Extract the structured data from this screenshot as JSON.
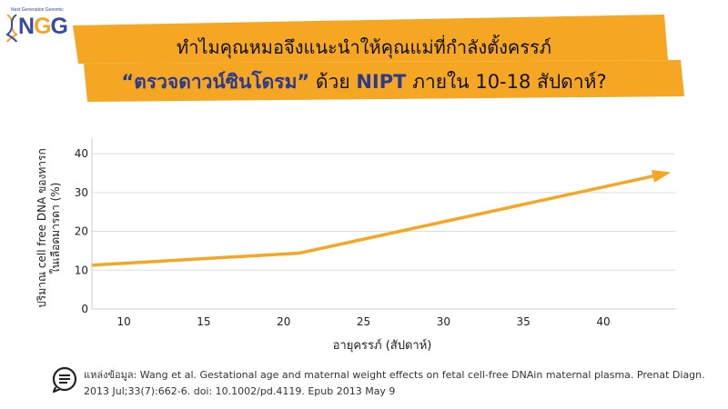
{
  "logo": {
    "tagline": "Next Generation Genomic",
    "letters": [
      "N",
      "G",
      "G"
    ]
  },
  "banner": {
    "line1": "ทำไมคุณหมอจึงแนะนำให้คุณแม่ที่กำลังตั้งครรภ์",
    "line2_highlight": "“ตรวจดาวน์ซินโดรม”",
    "line2_mid": " ด้วย ",
    "line2_nipt": "NIPT",
    "line2_end": " ภายใน 10-18 สัปดาห์?",
    "fill_color": "#f5a623"
  },
  "chart_data": {
    "type": "line",
    "xlabel": "อายุครรภ์ (สัปดาห์)",
    "ylabel_line1": "ปริมาณ cell free DNA ของทารก",
    "ylabel_line2": "ในเลือดมารดา (%)",
    "xlim": [
      8,
      44.5
    ],
    "ylim": [
      0,
      44
    ],
    "xticks": [
      10,
      15,
      20,
      25,
      30,
      35,
      40
    ],
    "yticks": [
      0,
      10,
      20,
      30,
      40
    ],
    "series": [
      {
        "color": "#f5a623",
        "x": [
          8,
          21,
          44
        ],
        "y": [
          11.3,
          14.4,
          35
        ]
      }
    ],
    "grid": true,
    "end_arrow": true
  },
  "footnote": {
    "line1": "แหล่งข้อมูล: Wang et al. Gestational age and maternal weight effects on fetal cell-free DNAin maternal plasma. Prenat Diagn.",
    "line2": "2013 Jul;33(7):662-6. doi: 10.1002/pd.4119. Epub 2013 May 9"
  }
}
